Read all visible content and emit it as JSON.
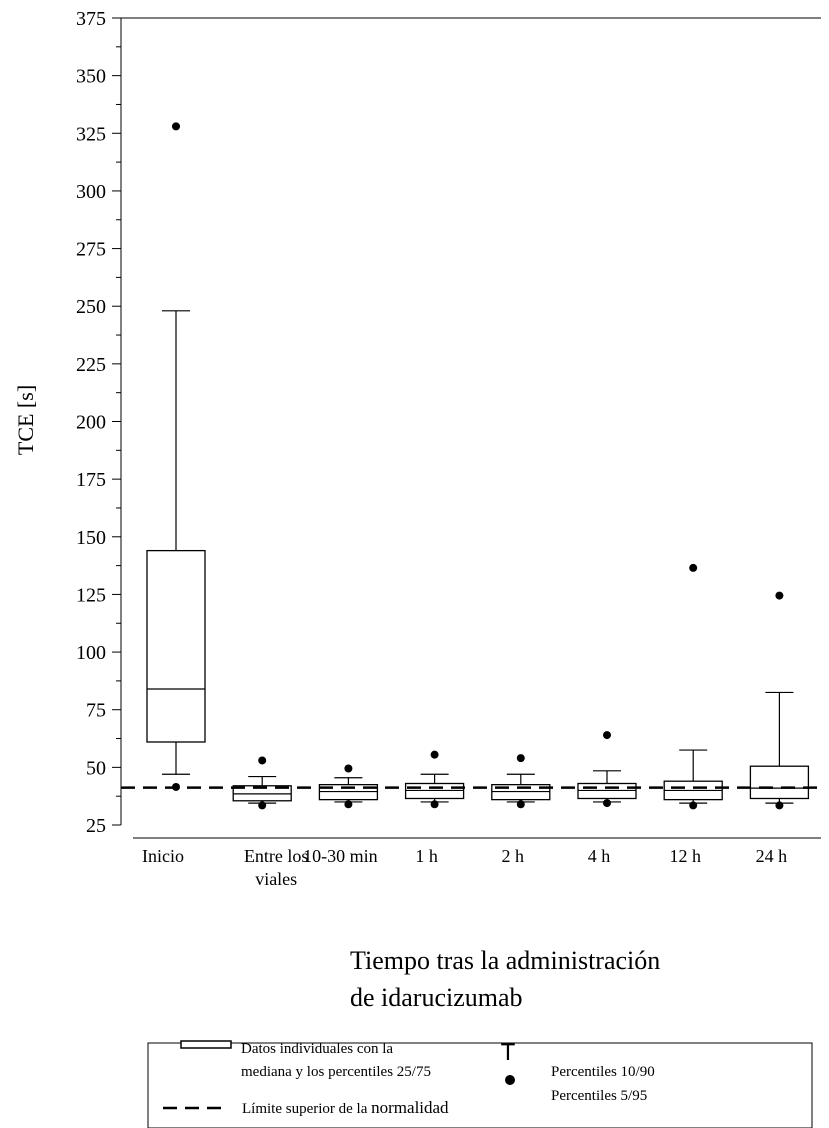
{
  "chart_data": {
    "type": "box",
    "ylabel": "TCE [s]",
    "xlabel_lines": [
      "Tiempo tras la administración",
      "de idarucizumab"
    ],
    "ylim": [
      25,
      375
    ],
    "y_ticks": [
      25,
      50,
      75,
      100,
      125,
      150,
      175,
      200,
      225,
      250,
      275,
      300,
      325,
      350,
      375
    ],
    "y_minor_step": 12.5,
    "categories": [
      {
        "label": [
          "Inicio"
        ]
      },
      {
        "label": [
          "Entre los",
          "viales"
        ]
      },
      {
        "label": [
          "10-30 min"
        ]
      },
      {
        "label": [
          "1 h"
        ]
      },
      {
        "label": [
          "2 h"
        ]
      },
      {
        "label": [
          "4 h"
        ]
      },
      {
        "label": [
          "12 h"
        ]
      },
      {
        "label": [
          "24 h"
        ]
      }
    ],
    "boxes": [
      {
        "p5": 41.5,
        "p10": 47,
        "q1": 61,
        "median": 84,
        "q3": 144,
        "p90": 248,
        "p95": 328
      },
      {
        "p5": 33.5,
        "p10": 34.5,
        "q1": 35.5,
        "median": 38.5,
        "q3": 42,
        "p90": 46,
        "p95": 53
      },
      {
        "p5": 34,
        "p10": 35,
        "q1": 36,
        "median": 39.5,
        "q3": 42.5,
        "p90": 45.5,
        "p95": 49.5
      },
      {
        "p5": 34,
        "p10": 35,
        "q1": 36.5,
        "median": 40,
        "q3": 43,
        "p90": 47,
        "p95": 55.5
      },
      {
        "p5": 34,
        "p10": 35,
        "q1": 36,
        "median": 39.5,
        "q3": 42.5,
        "p90": 47,
        "p95": 54
      },
      {
        "p5": 34.5,
        "p10": 35,
        "q1": 36.5,
        "median": 40,
        "q3": 43,
        "p90": 48.5,
        "p95": 64
      },
      {
        "p5": 33.5,
        "p10": 34.5,
        "q1": 36,
        "median": 40,
        "q3": 44,
        "p90": 57.5,
        "p95": 136.5
      },
      {
        "p5": 33.5,
        "p10": 34.5,
        "q1": 36.5,
        "median": 41,
        "q3": 50.5,
        "p90": 82.5,
        "p95": 124.5
      }
    ],
    "reference_line": {
      "value": 41.2,
      "style": "dashed"
    },
    "legend": {
      "box_label": [
        "Datos individuales con la",
        "mediana y los percentiles 25/75"
      ],
      "whisker_label": "Percentiles 10/90",
      "dot_label": "Percentiles 5/95",
      "line_label_parts": [
        "Límite superior de la ",
        "normalidad"
      ],
      "whisker_symbol": "T"
    }
  }
}
